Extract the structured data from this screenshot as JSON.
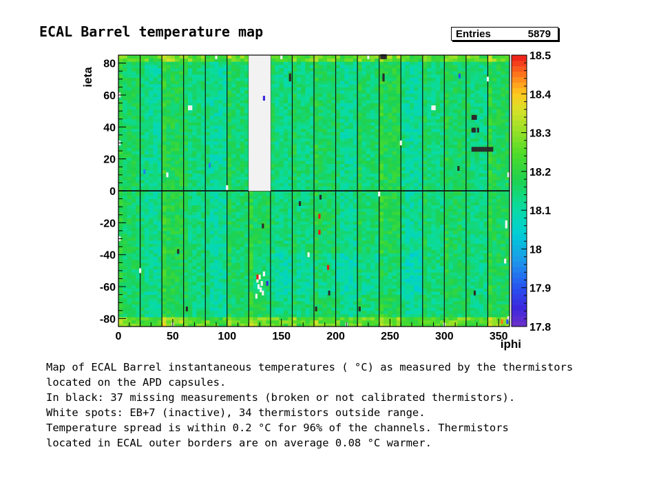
{
  "header": {
    "title": "ECAL Barrel temperature map",
    "stats_label": "Entries",
    "stats_value": "5879"
  },
  "chart_data": {
    "type": "heatmap",
    "title": "ECAL Barrel temperature map",
    "xlabel": "iphi",
    "ylabel": "ieta",
    "xlim": [
      0,
      360
    ],
    "ylim": [
      -85,
      85
    ],
    "x_ticks": [
      0,
      50,
      100,
      150,
      200,
      250,
      300,
      350
    ],
    "y_ticks": [
      -80,
      -60,
      -40,
      -20,
      0,
      20,
      40,
      60,
      80
    ],
    "z_range": [
      17.8,
      18.5
    ],
    "z_ticks": [
      "17.8",
      "17.9",
      "18",
      "18.1",
      "18.2",
      "18.3",
      "18.4",
      "18.5"
    ],
    "entries": 5879,
    "supermodule_boundaries_iphi": [
      20,
      40,
      60,
      80,
      100,
      120,
      140,
      160,
      180,
      200,
      220,
      240,
      260,
      280,
      300,
      320,
      340
    ],
    "inactive_regions": [
      {
        "name": "EB+7",
        "iphi": [
          120,
          140
        ],
        "ieta": [
          0,
          85
        ]
      }
    ],
    "missing_measurements": [
      {
        "iphi": 242,
        "ieta": 84
      },
      {
        "iphi": 243,
        "ieta": 84
      },
      {
        "iphi": 244,
        "ieta": 84
      },
      {
        "iphi": 245,
        "ieta": 84
      },
      {
        "iphi": 246,
        "ieta": 84
      },
      {
        "iphi": 244,
        "ieta": 72
      },
      {
        "iphi": 244,
        "ieta": 70
      },
      {
        "iphi": 158,
        "ieta": 72
      },
      {
        "iphi": 158,
        "ieta": 70
      },
      {
        "iphi": 326,
        "ieta": 46
      },
      {
        "iphi": 327,
        "ieta": 46
      },
      {
        "iphi": 328,
        "ieta": 46
      },
      {
        "iphi": 329,
        "ieta": 46
      },
      {
        "iphi": 326,
        "ieta": 38
      },
      {
        "iphi": 327,
        "ieta": 38
      },
      {
        "iphi": 328,
        "ieta": 38
      },
      {
        "iphi": 331,
        "ieta": 38
      },
      {
        "iphi": 326,
        "ieta": 26
      },
      {
        "iphi": 328,
        "ieta": 26
      },
      {
        "iphi": 330,
        "ieta": 26
      },
      {
        "iphi": 332,
        "ieta": 26
      },
      {
        "iphi": 334,
        "ieta": 26
      },
      {
        "iphi": 336,
        "ieta": 26
      },
      {
        "iphi": 338,
        "ieta": 26
      },
      {
        "iphi": 340,
        "ieta": 26
      },
      {
        "iphi": 342,
        "ieta": 26
      },
      {
        "iphi": 344,
        "ieta": 26
      },
      {
        "iphi": 313,
        "ieta": 14
      },
      {
        "iphi": 186,
        "ieta": -4
      },
      {
        "iphi": 167,
        "ieta": -8
      },
      {
        "iphi": 133,
        "ieta": -22
      },
      {
        "iphi": 55,
        "ieta": -38
      },
      {
        "iphi": 194,
        "ieta": -64
      },
      {
        "iphi": 328,
        "ieta": -64
      },
      {
        "iphi": 63,
        "ieta": -74
      },
      {
        "iphi": 182,
        "ieta": -74
      },
      {
        "iphi": 222,
        "ieta": -74
      }
    ],
    "white_spots": [
      {
        "iphi": 128,
        "ieta": -56
      },
      {
        "iphi": 129,
        "ieta": -60
      },
      {
        "iphi": 130,
        "ieta": -54
      },
      {
        "iphi": 131,
        "ieta": -62
      },
      {
        "iphi": 132,
        "ieta": -58
      },
      {
        "iphi": 133,
        "ieta": -64
      },
      {
        "iphi": 134,
        "ieta": -52
      },
      {
        "iphi": 127,
        "ieta": -66
      },
      {
        "iphi": 357,
        "ieta": -20
      },
      {
        "iphi": 357,
        "ieta": -22
      },
      {
        "iphi": 356,
        "ieta": -44
      },
      {
        "iphi": 289,
        "ieta": 52
      },
      {
        "iphi": 291,
        "ieta": 52
      },
      {
        "iphi": 65,
        "ieta": 52
      },
      {
        "iphi": 67,
        "ieta": 52
      },
      {
        "iphi": 1,
        "ieta": -30
      },
      {
        "iphi": 1,
        "ieta": 30
      },
      {
        "iphi": 1,
        "ieta": 60
      },
      {
        "iphi": 359,
        "ieta": 10
      },
      {
        "iphi": 359,
        "ieta": -80
      },
      {
        "iphi": 358,
        "ieta": -82
      },
      {
        "iphi": 90,
        "ieta": 84
      },
      {
        "iphi": 230,
        "ieta": 84
      },
      {
        "iphi": 300,
        "ieta": -84
      },
      {
        "iphi": 50,
        "ieta": -84
      },
      {
        "iphi": 150,
        "ieta": 84
      },
      {
        "iphi": 210,
        "ieta": -84
      },
      {
        "iphi": 240,
        "ieta": -2
      },
      {
        "iphi": 100,
        "ieta": 2
      },
      {
        "iphi": 20,
        "ieta": -50
      },
      {
        "iphi": 340,
        "ieta": 70
      },
      {
        "iphi": 175,
        "ieta": -40
      },
      {
        "iphi": 260,
        "ieta": 30
      },
      {
        "iphi": 45,
        "ieta": 10
      }
    ],
    "hot_spots": [
      {
        "iphi": 185,
        "ieta": -16,
        "value": 18.5
      },
      {
        "iphi": 185,
        "ieta": -26,
        "value": 18.5
      },
      {
        "iphi": 193,
        "ieta": -48,
        "value": 18.5
      },
      {
        "iphi": 128,
        "ieta": -54,
        "value": 18.5
      },
      {
        "iphi": 353,
        "ieta": -82,
        "value": 18.45
      }
    ],
    "cold_spots": [
      {
        "iphi": 134,
        "ieta": 58,
        "value": 17.85
      },
      {
        "iphi": 137,
        "ieta": -58,
        "value": 17.85
      },
      {
        "iphi": 314,
        "ieta": 72,
        "value": 17.9
      },
      {
        "iphi": 24,
        "ieta": 12,
        "value": 17.95
      },
      {
        "iphi": 84,
        "ieta": 16,
        "value": 17.95
      },
      {
        "iphi": 358,
        "ieta": -82,
        "value": 17.9
      }
    ]
  },
  "caption": {
    "line1": "Map of ECAL Barrel instantaneous temperatures ( °C) as measured by the thermistors",
    "line2": "located on the APD capsules.",
    "line3": "In black:  37 missing measurements (broken or not calibrated thermistors).",
    "line4": "White spots: EB+7 (inactive), 34 thermistors outside range.",
    "line5": "Temperature spread is within 0.2 °C for 96% of the channels. Thermistors",
    "line6": "located in ECAL outer borders are on average 0.08 °C warmer."
  },
  "colors": {
    "missing": "#2b2b2b",
    "inactive": "#f2f2f2",
    "axis": "#000000"
  }
}
